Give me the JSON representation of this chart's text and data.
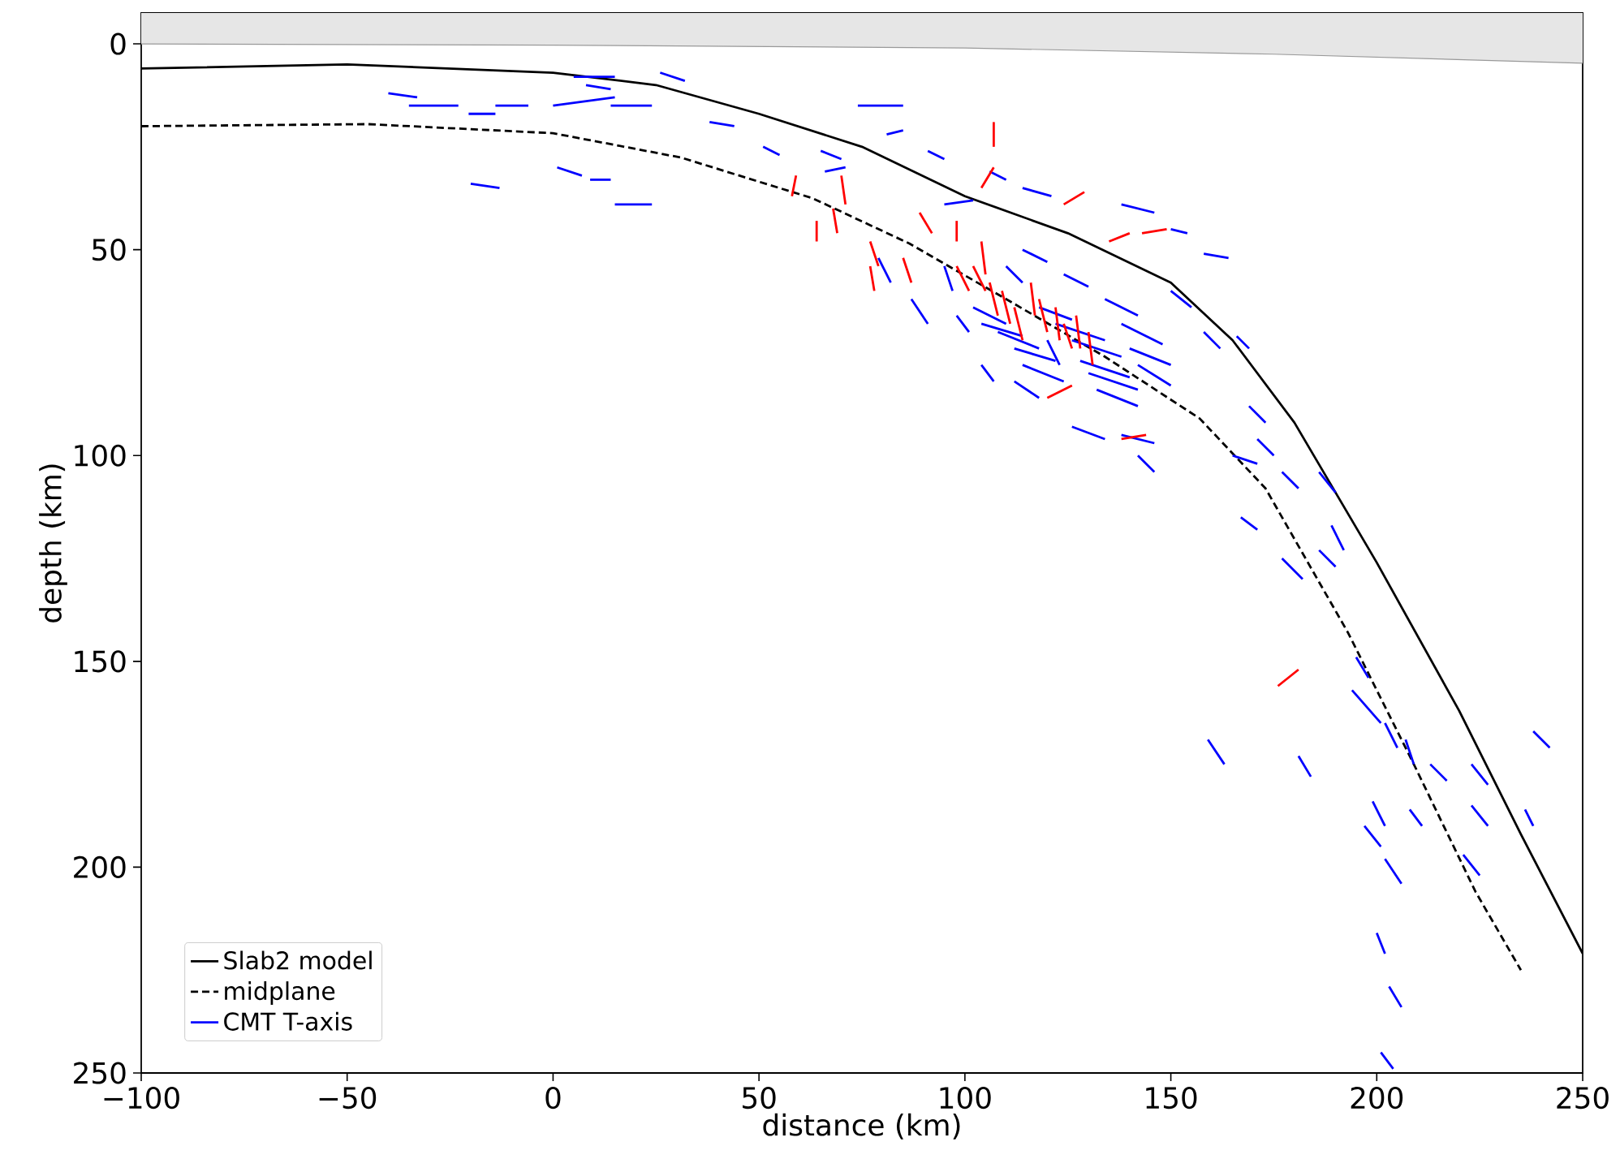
{
  "chart_data": {
    "type": "line",
    "xlabel": "distance (km)",
    "ylabel": "depth (km)",
    "xlim": [
      -100,
      250
    ],
    "ylim": [
      250,
      -7.5
    ],
    "xticks": [
      {
        "value": -100,
        "label": "−100"
      },
      {
        "value": -50,
        "label": "−50"
      },
      0,
      50,
      100,
      150,
      200,
      250
    ],
    "yticks": [
      0,
      50,
      100,
      150,
      200,
      250
    ],
    "legend": "bottom left",
    "series": [
      {
        "type": "line",
        "color": "#999999",
        "x": [
          -100,
          0,
          100,
          175,
          250
        ],
        "values": [
          0,
          0.3,
          1,
          2.5,
          4.7
        ],
        "lower": [
          -7.5,
          -7.5,
          -7.5,
          -7.5,
          -7.5
        ],
        "upper": [
          0,
          0.3,
          1,
          2.5,
          4.7
        ]
      },
      {
        "name": "Slab2 model",
        "color": "#000000",
        "line_style": "solid",
        "x": [
          -100,
          -50,
          0,
          25,
          50,
          75,
          100,
          125,
          150,
          165,
          180,
          200,
          220,
          235,
          250
        ],
        "values": [
          6,
          5,
          7,
          10,
          17,
          25,
          37,
          46,
          58,
          72,
          92,
          126,
          162,
          192,
          221
        ]
      },
      {
        "name": "midplane",
        "color": "#000000",
        "line_style": "dashed",
        "x": [
          -100,
          -45,
          0,
          31,
          63,
          86.5,
          110,
          134,
          157,
          173,
          193,
          209,
          224,
          235
        ],
        "values": [
          20,
          19.5,
          21.7,
          27.6,
          37.5,
          48.5,
          62,
          76,
          91,
          108,
          143,
          175,
          206,
          225
        ]
      },
      {
        "name": "CMT T-axis",
        "color": "#0000ff",
        "x": [
          -40,
          -33
        ],
        "values": [
          12,
          13
        ]
      },
      {
        "color": "#0000ff",
        "x": [
          -35,
          -23
        ],
        "values": [
          15,
          15
        ]
      },
      {
        "color": "#0000ff",
        "x": [
          -14,
          -6
        ],
        "values": [
          15,
          15
        ]
      },
      {
        "color": "#0000ff",
        "x": [
          -20.5,
          -14
        ],
        "values": [
          17,
          17
        ]
      },
      {
        "color": "#0000ff",
        "x": [
          -20,
          -13
        ],
        "values": [
          34,
          35
        ]
      },
      {
        "color": "#0000ff",
        "x": [
          0,
          15
        ],
        "values": [
          15,
          13
        ]
      },
      {
        "color": "#0000ff",
        "x": [
          5,
          15
        ],
        "values": [
          8,
          8
        ]
      },
      {
        "color": "#0000ff",
        "x": [
          8,
          14
        ],
        "values": [
          10,
          11
        ]
      },
      {
        "color": "#0000ff",
        "x": [
          26,
          32
        ],
        "values": [
          7,
          9
        ]
      },
      {
        "color": "#0000ff",
        "x": [
          14,
          24
        ],
        "values": [
          15,
          15
        ]
      },
      {
        "color": "#0000ff",
        "x": [
          1,
          7
        ],
        "values": [
          30,
          32
        ]
      },
      {
        "color": "#0000ff",
        "x": [
          9,
          14
        ],
        "values": [
          33,
          33
        ]
      },
      {
        "color": "#0000ff",
        "x": [
          15,
          24
        ],
        "values": [
          39,
          39
        ]
      },
      {
        "color": "#0000ff",
        "x": [
          38,
          44
        ],
        "values": [
          19,
          20
        ]
      },
      {
        "color": "#0000ff",
        "x": [
          51,
          55
        ],
        "values": [
          25,
          27
        ]
      },
      {
        "color": "#0000ff",
        "x": [
          66,
          71
        ],
        "values": [
          31,
          30
        ]
      },
      {
        "color": "#0000ff",
        "x": [
          65,
          70
        ],
        "values": [
          26,
          28
        ]
      },
      {
        "color": "#0000ff",
        "x": [
          74,
          85
        ],
        "values": [
          15,
          15
        ]
      },
      {
        "color": "#0000ff",
        "x": [
          81,
          85
        ],
        "values": [
          22,
          21
        ]
      },
      {
        "color": "#0000ff",
        "x": [
          91,
          95
        ],
        "values": [
          26,
          28
        ]
      },
      {
        "color": "#0000ff",
        "x": [
          95,
          102
        ],
        "values": [
          39,
          38
        ]
      },
      {
        "color": "#0000ff",
        "x": [
          106,
          110
        ],
        "values": [
          31,
          33
        ]
      },
      {
        "color": "#0000ff",
        "x": [
          114,
          121
        ],
        "values": [
          35,
          37
        ]
      },
      {
        "color": "#0000ff",
        "x": [
          138,
          146
        ],
        "values": [
          39,
          41
        ]
      },
      {
        "color": "#0000ff",
        "x": [
          150,
          154
        ],
        "values": [
          45,
          46
        ]
      },
      {
        "color": "#0000ff",
        "x": [
          158,
          164
        ],
        "values": [
          51,
          52
        ]
      },
      {
        "color": "#0000ff",
        "x": [
          150,
          155
        ],
        "values": [
          60,
          64
        ]
      },
      {
        "color": "#0000ff",
        "x": [
          158,
          162
        ],
        "values": [
          70,
          74
        ]
      },
      {
        "color": "#0000ff",
        "x": [
          166,
          169
        ],
        "values": [
          71,
          74
        ]
      },
      {
        "color": "#0000ff",
        "x": [
          169,
          173
        ],
        "values": [
          88,
          92
        ]
      },
      {
        "color": "#0000ff",
        "x": [
          171,
          175
        ],
        "values": [
          96,
          100
        ]
      },
      {
        "color": "#0000ff",
        "x": [
          165,
          171
        ],
        "values": [
          100,
          102
        ]
      },
      {
        "color": "#0000ff",
        "x": [
          177,
          181
        ],
        "values": [
          104,
          108
        ]
      },
      {
        "color": "#0000ff",
        "x": [
          186,
          190
        ],
        "values": [
          104,
          109
        ]
      },
      {
        "color": "#0000ff",
        "x": [
          189,
          192
        ],
        "values": [
          117,
          123
        ]
      },
      {
        "color": "#0000ff",
        "x": [
          167,
          171
        ],
        "values": [
          115,
          118
        ]
      },
      {
        "color": "#0000ff",
        "x": [
          177,
          182
        ],
        "values": [
          125,
          130
        ]
      },
      {
        "color": "#0000ff",
        "x": [
          186,
          190
        ],
        "values": [
          123,
          127
        ]
      },
      {
        "color": "#0000ff",
        "x": [
          195,
          198
        ],
        "values": [
          149,
          154
        ]
      },
      {
        "color": "#0000ff",
        "x": [
          202,
          205
        ],
        "values": [
          165,
          171
        ]
      },
      {
        "color": "#0000ff",
        "x": [
          194,
          201
        ],
        "values": [
          157,
          165
        ]
      },
      {
        "color": "#0000ff",
        "x": [
          159,
          163
        ],
        "values": [
          169,
          175
        ]
      },
      {
        "color": "#0000ff",
        "x": [
          181,
          184
        ],
        "values": [
          173,
          178
        ]
      },
      {
        "color": "#0000ff",
        "x": [
          207,
          209
        ],
        "values": [
          169,
          175
        ]
      },
      {
        "color": "#0000ff",
        "x": [
          213,
          217
        ],
        "values": [
          175,
          179
        ]
      },
      {
        "color": "#0000ff",
        "x": [
          223,
          227
        ],
        "values": [
          175,
          180
        ]
      },
      {
        "color": "#0000ff",
        "x": [
          199,
          202
        ],
        "values": [
          184,
          190
        ]
      },
      {
        "color": "#0000ff",
        "x": [
          208,
          211
        ],
        "values": [
          186,
          190
        ]
      },
      {
        "color": "#0000ff",
        "x": [
          197,
          201
        ],
        "values": [
          190,
          195
        ]
      },
      {
        "color": "#0000ff",
        "x": [
          202,
          206
        ],
        "values": [
          198,
          204
        ]
      },
      {
        "color": "#0000ff",
        "x": [
          223,
          227
        ],
        "values": [
          185,
          190
        ]
      },
      {
        "color": "#0000ff",
        "x": [
          221,
          225
        ],
        "values": [
          197,
          202
        ]
      },
      {
        "color": "#0000ff",
        "x": [
          200,
          202
        ],
        "values": [
          216,
          221
        ]
      },
      {
        "color": "#0000ff",
        "x": [
          203,
          206
        ],
        "values": [
          229,
          234
        ]
      },
      {
        "color": "#0000ff",
        "x": [
          201,
          204
        ],
        "values": [
          245,
          249
        ]
      },
      {
        "color": "#0000ff",
        "x": [
          238,
          242
        ],
        "values": [
          167,
          171
        ]
      },
      {
        "color": "#0000ff",
        "x": [
          236,
          238
        ],
        "values": [
          186,
          190
        ]
      },
      {
        "color": "#0000ff",
        "x": [
          102,
          110
        ],
        "values": [
          64,
          68
        ]
      },
      {
        "color": "#0000ff",
        "x": [
          104,
          114
        ],
        "values": [
          68,
          71
        ]
      },
      {
        "color": "#0000ff",
        "x": [
          108,
          118
        ],
        "values": [
          70,
          74
        ]
      },
      {
        "color": "#0000ff",
        "x": [
          112,
          122
        ],
        "values": [
          74,
          77
        ]
      },
      {
        "color": "#0000ff",
        "x": [
          114,
          124
        ],
        "values": [
          78,
          82
        ]
      },
      {
        "color": "#0000ff",
        "x": [
          118,
          126
        ],
        "values": [
          64,
          67
        ]
      },
      {
        "color": "#0000ff",
        "x": [
          122,
          134
        ],
        "values": [
          68,
          72
        ]
      },
      {
        "color": "#0000ff",
        "x": [
          126,
          138
        ],
        "values": [
          72,
          76
        ]
      },
      {
        "color": "#0000ff",
        "x": [
          128,
          140
        ],
        "values": [
          77,
          81
        ]
      },
      {
        "color": "#0000ff",
        "x": [
          130,
          142
        ],
        "values": [
          80,
          84
        ]
      },
      {
        "color": "#0000ff",
        "x": [
          132,
          142
        ],
        "values": [
          84,
          88
        ]
      },
      {
        "color": "#0000ff",
        "x": [
          134,
          142
        ],
        "values": [
          62,
          66
        ]
      },
      {
        "color": "#0000ff",
        "x": [
          138,
          148
        ],
        "values": [
          68,
          73
        ]
      },
      {
        "color": "#0000ff",
        "x": [
          140,
          150
        ],
        "values": [
          74,
          78
        ]
      },
      {
        "color": "#0000ff",
        "x": [
          142,
          150
        ],
        "values": [
          78,
          83
        ]
      },
      {
        "color": "#0000ff",
        "x": [
          112,
          118
        ],
        "values": [
          82,
          86
        ]
      },
      {
        "color": "#0000ff",
        "x": [
          126,
          134
        ],
        "values": [
          93,
          96
        ]
      },
      {
        "color": "#0000ff",
        "x": [
          138,
          146
        ],
        "values": [
          95,
          97
        ]
      },
      {
        "color": "#0000ff",
        "x": [
          142,
          146
        ],
        "values": [
          100,
          104
        ]
      },
      {
        "color": "#0000ff",
        "x": [
          110,
          114
        ],
        "values": [
          54,
          58
        ]
      },
      {
        "color": "#0000ff",
        "x": [
          114,
          120
        ],
        "values": [
          50,
          53
        ]
      },
      {
        "color": "#0000ff",
        "x": [
          124,
          130
        ],
        "values": [
          56,
          59
        ]
      },
      {
        "color": "#0000ff",
        "x": [
          95,
          97
        ],
        "values": [
          54,
          60
        ]
      },
      {
        "color": "#0000ff",
        "x": [
          87,
          91
        ],
        "values": [
          62,
          68
        ]
      },
      {
        "color": "#0000ff",
        "x": [
          98,
          101
        ],
        "values": [
          66,
          70
        ]
      },
      {
        "color": "#0000ff",
        "x": [
          79,
          82
        ],
        "values": [
          52,
          58
        ]
      },
      {
        "color": "#0000ff",
        "x": [
          104,
          107
        ],
        "values": [
          78,
          82
        ]
      },
      {
        "color": "#0000ff",
        "x": [
          120,
          123
        ],
        "values": [
          72,
          78
        ]
      },
      {
        "color": "#ff0000",
        "x": [
          107,
          107
        ],
        "values": [
          19,
          25
        ]
      },
      {
        "color": "#ff0000",
        "x": [
          107,
          104
        ],
        "values": [
          30,
          35
        ]
      },
      {
        "color": "#ff0000",
        "x": [
          59,
          58
        ],
        "values": [
          32,
          37
        ]
      },
      {
        "color": "#ff0000",
        "x": [
          70,
          71
        ],
        "values": [
          32,
          39
        ]
      },
      {
        "color": "#ff0000",
        "x": [
          64,
          64
        ],
        "values": [
          43,
          48
        ]
      },
      {
        "color": "#ff0000",
        "x": [
          68,
          69
        ],
        "values": [
          40,
          46
        ]
      },
      {
        "color": "#ff0000",
        "x": [
          77,
          79
        ],
        "values": [
          48,
          54
        ]
      },
      {
        "color": "#ff0000",
        "x": [
          77,
          78
        ],
        "values": [
          54,
          60
        ]
      },
      {
        "color": "#ff0000",
        "x": [
          85,
          87
        ],
        "values": [
          52,
          58
        ]
      },
      {
        "color": "#ff0000",
        "x": [
          89,
          92
        ],
        "values": [
          41,
          46
        ]
      },
      {
        "color": "#ff0000",
        "x": [
          98,
          98
        ],
        "values": [
          43,
          48
        ]
      },
      {
        "color": "#ff0000",
        "x": [
          104,
          105
        ],
        "values": [
          48,
          56
        ]
      },
      {
        "color": "#ff0000",
        "x": [
          98,
          101
        ],
        "values": [
          54,
          60
        ]
      },
      {
        "color": "#ff0000",
        "x": [
          124,
          129
        ],
        "values": [
          39,
          36
        ]
      },
      {
        "color": "#ff0000",
        "x": [
          135,
          140
        ],
        "values": [
          48,
          46
        ]
      },
      {
        "color": "#ff0000",
        "x": [
          143,
          149
        ],
        "values": [
          46,
          45
        ]
      },
      {
        "color": "#ff0000",
        "x": [
          102,
          105
        ],
        "values": [
          54,
          60
        ]
      },
      {
        "color": "#ff0000",
        "x": [
          106,
          108
        ],
        "values": [
          58,
          66
        ]
      },
      {
        "color": "#ff0000",
        "x": [
          109,
          111
        ],
        "values": [
          60,
          68
        ]
      },
      {
        "color": "#ff0000",
        "x": [
          112,
          114
        ],
        "values": [
          64,
          72
        ]
      },
      {
        "color": "#ff0000",
        "x": [
          116,
          117
        ],
        "values": [
          58,
          66
        ]
      },
      {
        "color": "#ff0000",
        "x": [
          118,
          120
        ],
        "values": [
          62,
          70
        ]
      },
      {
        "color": "#ff0000",
        "x": [
          122,
          123
        ],
        "values": [
          64,
          72
        ]
      },
      {
        "color": "#ff0000",
        "x": [
          124,
          126
        ],
        "values": [
          68,
          74
        ]
      },
      {
        "color": "#ff0000",
        "x": [
          127,
          128
        ],
        "values": [
          66,
          74
        ]
      },
      {
        "color": "#ff0000",
        "x": [
          130,
          131
        ],
        "values": [
          70,
          78
        ]
      },
      {
        "color": "#ff0000",
        "x": [
          120,
          126
        ],
        "values": [
          86,
          83
        ]
      },
      {
        "color": "#ff0000",
        "x": [
          138,
          144
        ],
        "values": [
          96,
          95
        ]
      },
      {
        "color": "#ff0000",
        "x": [
          176,
          181
        ],
        "values": [
          156,
          152
        ]
      }
    ]
  }
}
